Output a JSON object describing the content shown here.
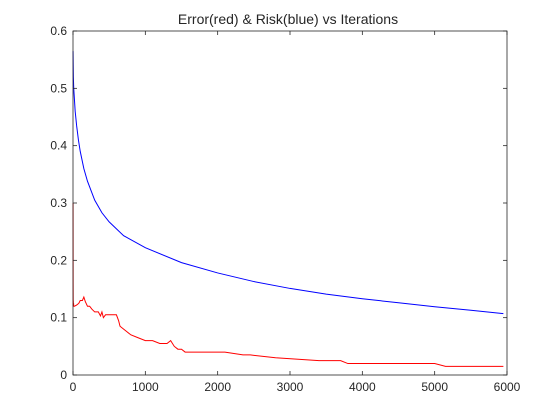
{
  "chart_data": {
    "type": "line",
    "title": "Error(red) & Risk(blue) vs Iterations",
    "xlabel": "",
    "ylabel": "",
    "xlim": [
      0,
      6000
    ],
    "ylim": [
      0,
      0.6
    ],
    "xticks": [
      0,
      1000,
      2000,
      3000,
      4000,
      5000,
      6000
    ],
    "xtick_labels": [
      "0",
      "1000",
      "2000",
      "3000",
      "4000",
      "5000",
      "6000"
    ],
    "yticks": [
      0,
      0.1,
      0.2,
      0.3,
      0.4,
      0.5,
      0.6
    ],
    "ytick_labels": [
      "0",
      "0.1",
      "0.2",
      "0.3",
      "0.4",
      "0.5",
      "0.6"
    ],
    "grid": false,
    "legend": "none",
    "series": [
      {
        "color": "#0000ff",
        "x": [
          1,
          3,
          5,
          10,
          20,
          30,
          50,
          75,
          100,
          150,
          200,
          300,
          400,
          500,
          700,
          1000,
          1500,
          2000,
          2500,
          3000,
          3500,
          4000,
          4500,
          5000,
          5500,
          5950
        ],
        "y": [
          0.565,
          0.54,
          0.52,
          0.5,
          0.48,
          0.46,
          0.435,
          0.41,
          0.39,
          0.36,
          0.338,
          0.305,
          0.283,
          0.267,
          0.243,
          0.222,
          0.196,
          0.178,
          0.163,
          0.151,
          0.141,
          0.133,
          0.126,
          0.119,
          0.113,
          0.107
        ]
      },
      {
        "color": "#ff0000",
        "x": [
          1,
          2,
          3,
          4,
          5,
          6,
          8,
          10,
          20,
          50,
          80,
          100,
          130,
          150,
          170,
          200,
          230,
          260,
          300,
          350,
          380,
          400,
          420,
          450,
          500,
          600,
          630,
          650,
          700,
          750,
          800,
          900,
          1000,
          1100,
          1200,
          1300,
          1350,
          1400,
          1450,
          1500,
          1550,
          2000,
          2100,
          2350,
          2450,
          2800,
          3400,
          3700,
          3800,
          4000,
          5000,
          5150,
          5950
        ],
        "y": [
          0.3,
          0.16,
          0.12,
          0.13,
          0.125,
          0.12,
          0.125,
          0.12,
          0.12,
          0.122,
          0.125,
          0.13,
          0.13,
          0.136,
          0.128,
          0.12,
          0.12,
          0.115,
          0.11,
          0.11,
          0.103,
          0.11,
          0.1,
          0.105,
          0.105,
          0.105,
          0.095,
          0.085,
          0.08,
          0.075,
          0.07,
          0.065,
          0.06,
          0.06,
          0.055,
          0.055,
          0.06,
          0.05,
          0.045,
          0.045,
          0.04,
          0.04,
          0.04,
          0.035,
          0.035,
          0.03,
          0.025,
          0.025,
          0.02,
          0.02,
          0.02,
          0.015,
          0.015
        ]
      }
    ]
  }
}
